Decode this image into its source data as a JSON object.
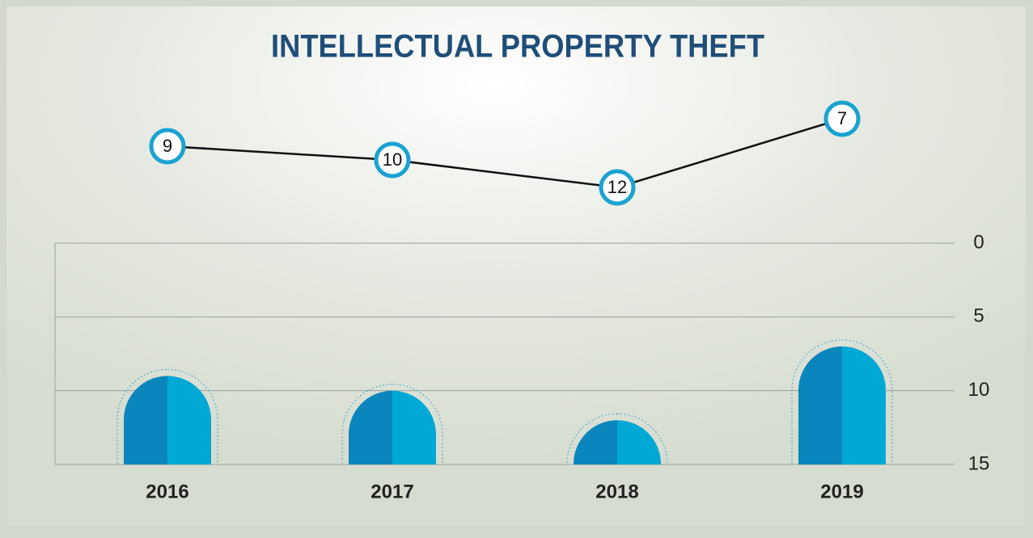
{
  "chart_data": {
    "type": "bar",
    "title": "INTELLECTUAL PROPERTY THEFT",
    "categories": [
      "2016",
      "2017",
      "2018",
      "2019"
    ],
    "values": [
      9,
      10,
      12,
      7
    ],
    "color": "#00a8d6",
    "line_color": "#1aa3d1",
    "ylim": [
      15,
      0
    ],
    "yticks": [
      0,
      5,
      10,
      15
    ],
    "grid": true
  }
}
